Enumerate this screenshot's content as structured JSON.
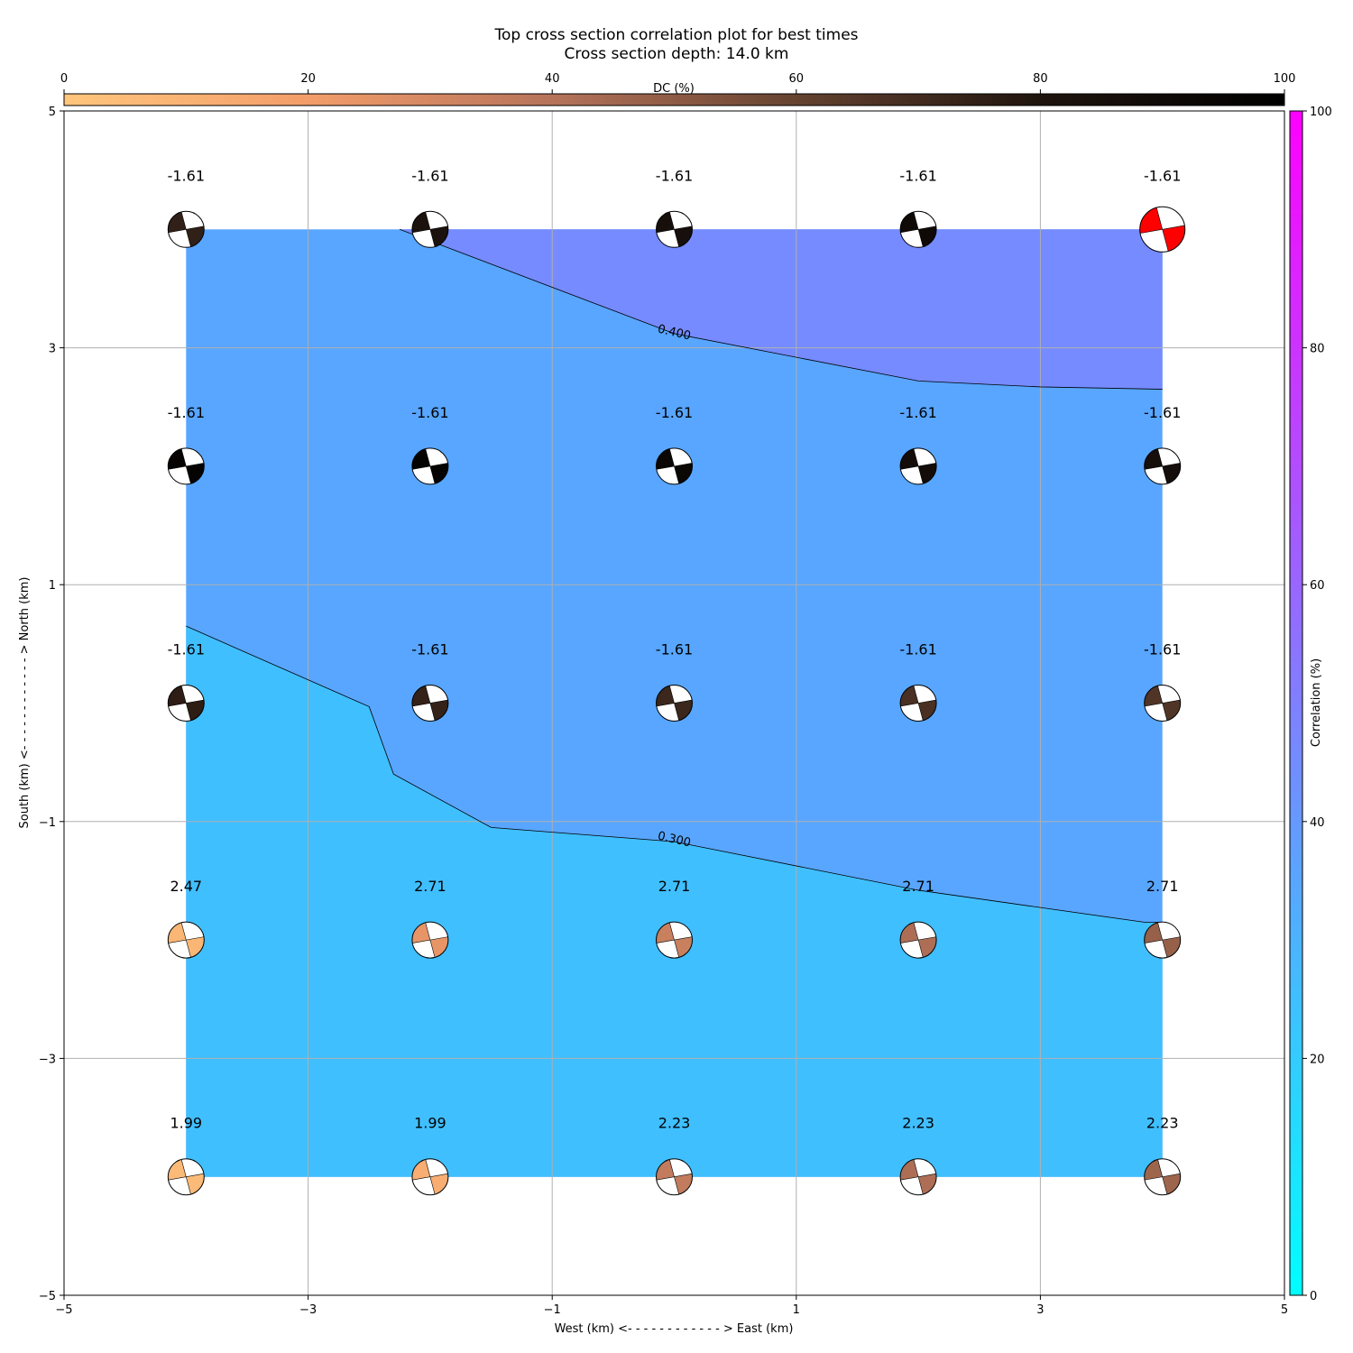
{
  "chart_data": {
    "type": "heatmap",
    "title": "Top cross section correlation plot for best times",
    "subtitle": "Cross section depth: 14.0 km",
    "xlabel": "West (km) <- - - - - - - - - - - - > East (km)",
    "ylabel": "South (km) <- - - - - - - - - - - - > North (km)",
    "xlim": [
      -5,
      5
    ],
    "ylim": [
      -5,
      5
    ],
    "x_ticks": [
      "−5",
      "−3",
      "−1",
      "1",
      "3",
      "5"
    ],
    "y_ticks": [
      "−5",
      "−3",
      "−1",
      "1",
      "3",
      "5"
    ],
    "x_tick_values": [
      -5,
      -3,
      -1,
      1,
      3,
      5
    ],
    "y_tick_values": [
      -5,
      -3,
      -1,
      1,
      3,
      5
    ],
    "grid": true,
    "dc_colorbar": {
      "label": "DC (%)",
      "range": [
        0,
        100
      ],
      "ticks": [
        "0",
        "20",
        "40",
        "60",
        "80",
        "100"
      ],
      "tick_values": [
        0,
        20,
        40,
        60,
        80,
        100
      ],
      "colors": [
        "#ffc67d",
        "#f39d6a",
        "#b6735a",
        "#654330",
        "#1f140e",
        "#000000"
      ]
    },
    "correlation_colorbar": {
      "label": "Correlation (%)",
      "range": [
        0,
        100
      ],
      "ticks": [
        "0",
        "20",
        "40",
        "60",
        "80",
        "100"
      ],
      "tick_values": [
        0,
        20,
        40,
        60,
        80,
        100
      ],
      "colors": [
        "#00ffff",
        "#ff00ff"
      ]
    },
    "contour_fill": {
      "x_range": [
        -4,
        4
      ],
      "y_range": [
        -4,
        4
      ],
      "colors": {
        "low": "#40bfff",
        "mid": "#58a6ff",
        "high": "#758bff"
      }
    },
    "contours": [
      {
        "label": "0.300",
        "label_at": [
          0,
          -1.15
        ],
        "label_angle": 13,
        "points": [
          [
            -4,
            0.65
          ],
          [
            -2.5,
            -0.03
          ],
          [
            -2.3,
            -0.6
          ],
          [
            -1.5,
            -1.05
          ],
          [
            0,
            -1.17
          ],
          [
            2,
            -1.58
          ],
          [
            3.85,
            -1.85
          ],
          [
            4,
            -1.85
          ]
        ]
      },
      {
        "label": "0.400",
        "label_at": [
          0,
          3.13
        ],
        "label_angle": 13,
        "points": [
          [
            -2.25,
            4
          ],
          [
            0,
            3.12
          ],
          [
            2,
            2.72
          ],
          [
            3,
            2.67
          ],
          [
            4,
            2.65
          ]
        ]
      }
    ],
    "mechanisms": [
      {
        "x": -4,
        "y": 4,
        "value": "-1.61",
        "dc": 75
      },
      {
        "x": -2,
        "y": 4,
        "value": "-1.61",
        "dc": 82
      },
      {
        "x": 0,
        "y": 4,
        "value": "-1.61",
        "dc": 85
      },
      {
        "x": 2,
        "y": 4,
        "value": "-1.61",
        "dc": 90
      },
      {
        "x": 4,
        "y": 4,
        "value": "-1.61",
        "dc": 50,
        "best": true,
        "color": "#ff0000"
      },
      {
        "x": -4,
        "y": 2,
        "value": "-1.61",
        "dc": 96
      },
      {
        "x": -2,
        "y": 2,
        "value": "-1.61",
        "dc": 97
      },
      {
        "x": 0,
        "y": 2,
        "value": "-1.61",
        "dc": 93
      },
      {
        "x": 2,
        "y": 2,
        "value": "-1.61",
        "dc": 88
      },
      {
        "x": 4,
        "y": 2,
        "value": "-1.61",
        "dc": 86
      },
      {
        "x": -4,
        "y": 0,
        "value": "-1.61",
        "dc": 76
      },
      {
        "x": -2,
        "y": 0,
        "value": "-1.61",
        "dc": 74
      },
      {
        "x": 0,
        "y": 0,
        "value": "-1.61",
        "dc": 72
      },
      {
        "x": 2,
        "y": 0,
        "value": "-1.61",
        "dc": 68
      },
      {
        "x": 4,
        "y": 0,
        "value": "-1.61",
        "dc": 66
      },
      {
        "x": -4,
        "y": -2,
        "value": "2.47",
        "dc": 8
      },
      {
        "x": -2,
        "y": -2,
        "value": "2.71",
        "dc": 24
      },
      {
        "x": 0,
        "y": -2,
        "value": "2.71",
        "dc": 34
      },
      {
        "x": 2,
        "y": -2,
        "value": "2.71",
        "dc": 42
      },
      {
        "x": 4,
        "y": -2,
        "value": "2.71",
        "dc": 48
      },
      {
        "x": -4,
        "y": -4,
        "value": "1.99",
        "dc": 6
      },
      {
        "x": -2,
        "y": -4,
        "value": "1.99",
        "dc": 12
      },
      {
        "x": 0,
        "y": -4,
        "value": "2.23",
        "dc": 36
      },
      {
        "x": 2,
        "y": -4,
        "value": "2.23",
        "dc": 42
      },
      {
        "x": 4,
        "y": -4,
        "value": "2.23",
        "dc": 46
      }
    ]
  }
}
